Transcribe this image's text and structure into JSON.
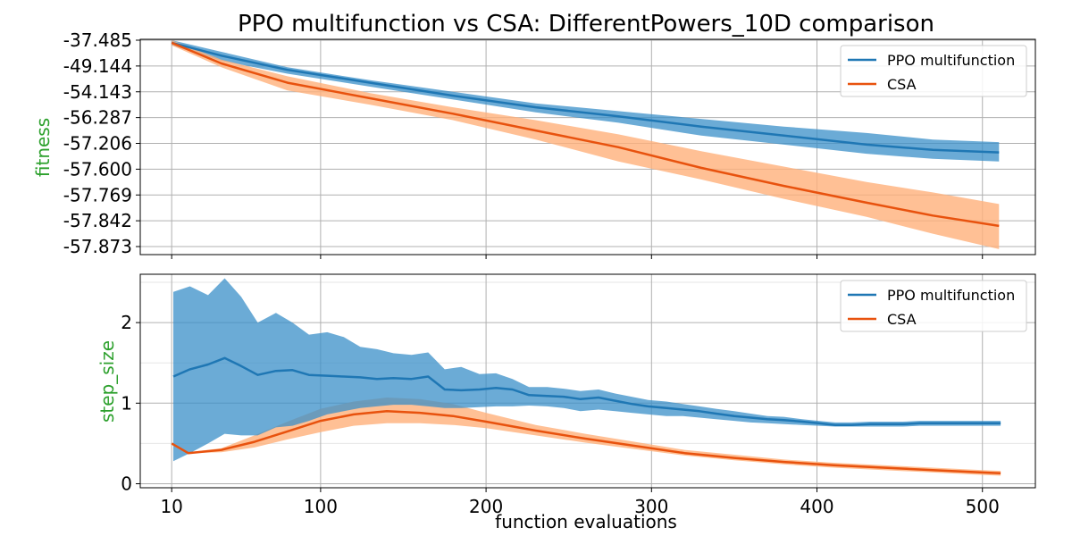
{
  "figure_title": "PPO multifunction vs CSA: DifferentPowers_10D comparison",
  "xlabel": "function evaluations",
  "colors": {
    "ppo": "#1f77b4",
    "ppo_band": "#3a8fc8",
    "csa": "#e8520e",
    "csa_band": "#ffb07a",
    "ylabel": "#2ca02c"
  },
  "chart_data": [
    {
      "type": "line",
      "panel": "top",
      "ylabel": "fitness",
      "x_ticks": [
        10,
        100,
        200,
        300,
        400,
        500
      ],
      "y_tick_labels": [
        "-37.485",
        "-49.144",
        "-54.143",
        "-56.287",
        "-57.206",
        "-57.600",
        "-57.769",
        "-57.842",
        "-57.873"
      ],
      "xlim": [
        -9,
        532
      ],
      "legend": {
        "placement": "top-right",
        "entries": [
          "PPO multifunction",
          "CSA"
        ]
      },
      "series": [
        {
          "name": "PPO multifunction",
          "x": [
            10,
            40,
            80,
            130,
            180,
            230,
            280,
            330,
            380,
            430,
            470,
            510
          ],
          "mean": [
            0.1,
            0.6,
            1.15,
            1.65,
            2.15,
            2.6,
            2.95,
            3.35,
            3.7,
            4.05,
            4.25,
            4.35
          ],
          "low": [
            0.0,
            0.45,
            1.05,
            1.55,
            2.0,
            2.45,
            2.75,
            3.05,
            3.35,
            3.6,
            3.85,
            3.95
          ],
          "high": [
            0.2,
            0.8,
            1.3,
            1.8,
            2.3,
            2.8,
            3.2,
            3.7,
            4.05,
            4.4,
            4.6,
            4.7
          ]
        },
        {
          "name": "CSA",
          "x": [
            10,
            40,
            80,
            130,
            180,
            230,
            280,
            330,
            380,
            430,
            470,
            510
          ],
          "mean": [
            0.1,
            0.9,
            1.65,
            2.25,
            2.85,
            3.5,
            4.15,
            4.95,
            5.65,
            6.3,
            6.8,
            7.2
          ],
          "low": [
            0.0,
            0.75,
            1.4,
            2.05,
            2.6,
            3.1,
            3.65,
            4.3,
            4.9,
            5.5,
            5.9,
            6.35
          ],
          "high": [
            0.2,
            1.05,
            1.95,
            2.5,
            3.1,
            3.85,
            4.7,
            5.4,
            6.15,
            6.85,
            7.5,
            8.1
          ]
        }
      ]
    },
    {
      "type": "line",
      "panel": "bottom",
      "ylabel": "step_size",
      "x_ticks": [
        10,
        100,
        200,
        300,
        400,
        500
      ],
      "xlim": [
        -9,
        532
      ],
      "ylim": [
        -0.05,
        2.6
      ],
      "y_ticks": [
        0,
        1,
        2
      ],
      "legend": {
        "placement": "top-right",
        "entries": [
          "PPO multifunction",
          "CSA"
        ]
      },
      "series": [
        {
          "name": "PPO multifunction",
          "x": [
            11,
            21,
            32,
            42,
            52,
            62,
            73,
            83,
            93,
            104,
            114,
            124,
            134,
            144,
            155,
            165,
            175,
            185,
            196,
            206,
            216,
            226,
            237,
            247,
            257,
            268,
            278,
            288,
            298,
            309,
            319,
            329,
            339,
            350,
            360,
            370,
            380,
            391,
            401,
            411,
            421,
            432,
            442,
            452,
            462,
            473,
            483,
            493,
            503,
            511
          ],
          "mean": [
            1.33,
            1.42,
            1.48,
            1.56,
            1.46,
            1.35,
            1.4,
            1.41,
            1.35,
            1.34,
            1.33,
            1.32,
            1.3,
            1.31,
            1.3,
            1.33,
            1.17,
            1.16,
            1.17,
            1.19,
            1.17,
            1.1,
            1.09,
            1.08,
            1.05,
            1.07,
            1.03,
            0.99,
            0.96,
            0.94,
            0.92,
            0.9,
            0.87,
            0.84,
            0.82,
            0.8,
            0.79,
            0.77,
            0.75,
            0.73,
            0.73,
            0.74,
            0.74,
            0.74,
            0.75,
            0.75,
            0.75,
            0.75,
            0.75,
            0.75
          ],
          "low": [
            0.28,
            0.38,
            0.5,
            0.62,
            0.6,
            0.6,
            0.7,
            0.72,
            0.78,
            0.86,
            0.9,
            0.94,
            0.96,
            0.98,
            0.98,
            0.96,
            0.94,
            0.94,
            0.95,
            0.96,
            0.96,
            0.97,
            0.96,
            0.94,
            0.9,
            0.92,
            0.9,
            0.88,
            0.86,
            0.84,
            0.84,
            0.82,
            0.8,
            0.78,
            0.76,
            0.75,
            0.74,
            0.73,
            0.72,
            0.71,
            0.71,
            0.71,
            0.71,
            0.71,
            0.72,
            0.72,
            0.72,
            0.72,
            0.72,
            0.72
          ],
          "high": [
            2.38,
            2.45,
            2.34,
            2.55,
            2.32,
            2.0,
            2.12,
            2.0,
            1.85,
            1.88,
            1.82,
            1.7,
            1.67,
            1.62,
            1.6,
            1.63,
            1.42,
            1.45,
            1.36,
            1.37,
            1.3,
            1.2,
            1.2,
            1.18,
            1.15,
            1.17,
            1.12,
            1.08,
            1.04,
            1.02,
            0.99,
            0.96,
            0.93,
            0.9,
            0.87,
            0.84,
            0.83,
            0.8,
            0.78,
            0.76,
            0.76,
            0.77,
            0.77,
            0.77,
            0.78,
            0.78,
            0.78,
            0.78,
            0.78,
            0.78
          ]
        },
        {
          "name": "CSA",
          "x": [
            10,
            20,
            40,
            60,
            80,
            100,
            120,
            140,
            160,
            180,
            200,
            230,
            260,
            290,
            320,
            350,
            380,
            410,
            440,
            470,
            500,
            511
          ],
          "mean": [
            0.5,
            0.38,
            0.42,
            0.52,
            0.65,
            0.78,
            0.86,
            0.9,
            0.88,
            0.84,
            0.77,
            0.66,
            0.56,
            0.47,
            0.38,
            0.32,
            0.27,
            0.23,
            0.2,
            0.17,
            0.14,
            0.13
          ],
          "low": [
            0.5,
            0.38,
            0.39,
            0.45,
            0.55,
            0.64,
            0.72,
            0.75,
            0.75,
            0.73,
            0.69,
            0.6,
            0.51,
            0.43,
            0.35,
            0.29,
            0.24,
            0.2,
            0.17,
            0.14,
            0.11,
            0.1
          ],
          "high": [
            0.5,
            0.39,
            0.44,
            0.6,
            0.77,
            0.93,
            1.02,
            1.07,
            1.05,
            0.99,
            0.88,
            0.73,
            0.62,
            0.52,
            0.42,
            0.36,
            0.3,
            0.26,
            0.23,
            0.2,
            0.17,
            0.16
          ]
        }
      ]
    }
  ]
}
